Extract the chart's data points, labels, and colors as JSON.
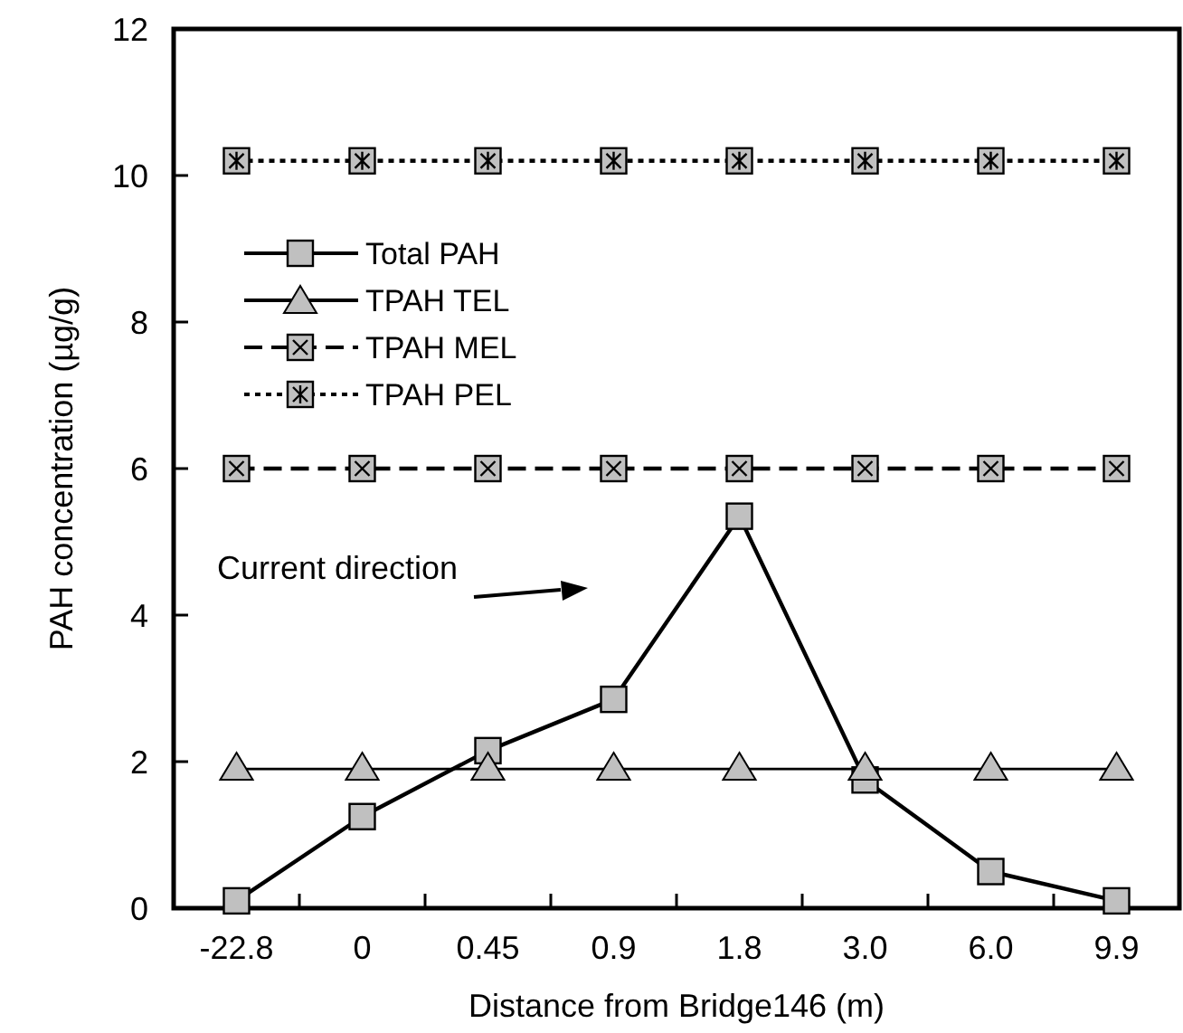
{
  "chart_data": {
    "type": "line",
    "xlabel": "Distance from Bridge146 (m)",
    "ylabel": "PAH concentration (µg/g)",
    "categories": [
      "-22.8",
      "0",
      "0.45",
      "0.9",
      "1.8",
      "3.0",
      "6.0",
      "9.9"
    ],
    "series": [
      {
        "name": "Total PAH",
        "color": "#000000",
        "marker": "square",
        "line_style": "solid",
        "values": [
          0.1,
          1.25,
          2.15,
          2.85,
          5.35,
          1.75,
          0.5,
          0.1
        ]
      },
      {
        "name": "TPAH TEL",
        "color": "#000000",
        "marker": "triangle",
        "line_style": "solid",
        "values": [
          1.9,
          1.9,
          1.9,
          1.9,
          1.9,
          1.9,
          1.9,
          1.9
        ]
      },
      {
        "name": "TPAH MEL",
        "color": "#000000",
        "marker": "square",
        "line_style": "dashed",
        "values": [
          6,
          6,
          6,
          6,
          6,
          6,
          6,
          6
        ]
      },
      {
        "name": "TPAH PEL",
        "color": "#000000",
        "marker": "square",
        "line_style": "dotted",
        "values": [
          10.2,
          10.2,
          10.2,
          10.2,
          10.2,
          10.2,
          10.2,
          10.2
        ]
      }
    ],
    "ylim": [
      0,
      12
    ],
    "yticks": [
      0,
      2,
      4,
      6,
      8,
      10,
      12
    ],
    "grid": false,
    "legend": "top left",
    "annotations": [
      "Current direction"
    ]
  }
}
